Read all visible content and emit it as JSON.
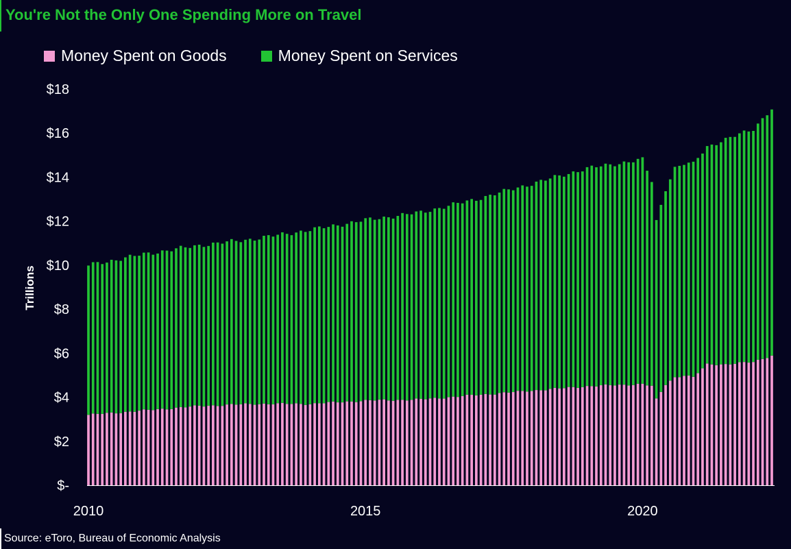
{
  "title": "You're Not the Only One Spending More on Travel",
  "source": "Source: eToro, Bureau of Economic Analysis",
  "colors": {
    "background": "#05051f",
    "goods": "#f39bd2",
    "services": "#22c334",
    "title": "#22c334"
  },
  "chart_data": {
    "type": "bar",
    "stacked": true,
    "ylabel": "Trillions",
    "ylim": [
      0,
      18
    ],
    "y_ticks": [
      0,
      2,
      4,
      6,
      8,
      10,
      12,
      14,
      16,
      18
    ],
    "y_tick_labels": [
      "$-",
      "$2",
      "$4",
      "$6",
      "$8",
      "$10",
      "$12",
      "$14",
      "$16",
      "$18"
    ],
    "x_tick_labels": [
      "2010",
      "2015",
      "2020"
    ],
    "x_tick_years": [
      2010,
      2015,
      2020
    ],
    "period_start": "2010-01",
    "period_end": "2022-05",
    "legend_position": "top-left",
    "grid": false,
    "series": [
      {
        "name": "Money Spent on Goods",
        "anchors": [
          [
            2010.0,
            3.2
          ],
          [
            2011.0,
            3.4
          ],
          [
            2012.0,
            3.6
          ],
          [
            2013.0,
            3.7
          ],
          [
            2014.0,
            3.7
          ],
          [
            2015.0,
            3.85
          ],
          [
            2016.0,
            3.9
          ],
          [
            2017.0,
            4.1
          ],
          [
            2018.0,
            4.3
          ],
          [
            2019.0,
            4.5
          ],
          [
            2020.0,
            4.6
          ],
          [
            2020.17,
            4.5
          ],
          [
            2020.25,
            3.9
          ],
          [
            2020.42,
            4.6
          ],
          [
            2020.58,
            4.9
          ],
          [
            2020.75,
            5.0
          ],
          [
            2020.92,
            4.9
          ],
          [
            2021.0,
            5.1
          ],
          [
            2021.17,
            5.5
          ],
          [
            2021.5,
            5.5
          ],
          [
            2022.0,
            5.6
          ],
          [
            2022.33,
            5.9
          ]
        ]
      },
      {
        "name": "Money Spent on Services",
        "anchors": [
          [
            2010.0,
            6.8
          ],
          [
            2011.0,
            7.1
          ],
          [
            2012.0,
            7.3
          ],
          [
            2013.0,
            7.5
          ],
          [
            2014.0,
            7.9
          ],
          [
            2015.0,
            8.2
          ],
          [
            2016.0,
            8.5
          ],
          [
            2017.0,
            8.9
          ],
          [
            2018.0,
            9.4
          ],
          [
            2019.0,
            9.9
          ],
          [
            2020.0,
            10.2
          ],
          [
            2020.17,
            9.3
          ],
          [
            2020.25,
            8.1
          ],
          [
            2020.42,
            8.9
          ],
          [
            2020.58,
            9.5
          ],
          [
            2020.75,
            9.6
          ],
          [
            2020.92,
            9.7
          ],
          [
            2021.0,
            9.8
          ],
          [
            2021.17,
            9.9
          ],
          [
            2021.5,
            10.2
          ],
          [
            2022.0,
            10.6
          ],
          [
            2022.33,
            11.2
          ]
        ]
      }
    ]
  }
}
